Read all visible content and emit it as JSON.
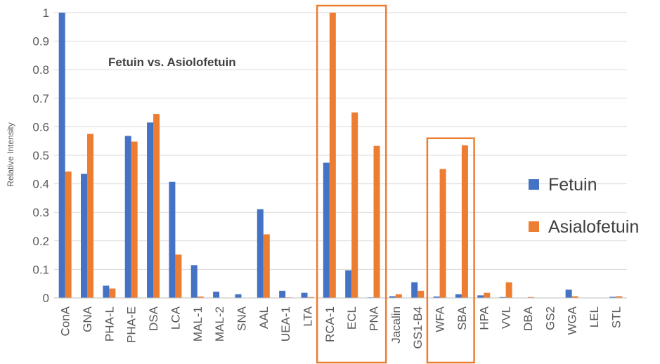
{
  "chart_data": {
    "type": "bar",
    "title": "Fetuin vs. Asiolofetuin",
    "ylabel": "Relative Intensity",
    "xlabel": "",
    "ylim": [
      0,
      1
    ],
    "yticks": [
      "0",
      "0.1",
      "0.2",
      "0.3",
      "0.4",
      "0.5",
      "0.6",
      "0.7",
      "0.8",
      "0.9",
      "1"
    ],
    "grid": true,
    "legend_position": "right",
    "categories": [
      "ConA",
      "GNA",
      "PHA-L",
      "PHA-E",
      "DSA",
      "LCA",
      "MAL-1",
      "MAL-2",
      "SNA",
      "AAL",
      "UEA-1",
      "LTA",
      "RCA-1",
      "ECL",
      "PNA",
      "Jacalin",
      "GS1-B4",
      "WFA",
      "SBA",
      "HPA",
      "VVL",
      "DBA",
      "GS2",
      "WGA",
      "LEL",
      "STL"
    ],
    "series": [
      {
        "name": "Fetuin",
        "color": "#4472C4",
        "values": [
          1.0,
          0.435,
          0.043,
          0.568,
          0.615,
          0.407,
          0.115,
          0.022,
          0.013,
          0.311,
          0.025,
          0.018,
          0.474,
          0.097,
          0.002,
          0.006,
          0.055,
          0.005,
          0.013,
          0.009,
          0.003,
          0.0,
          0.0,
          0.029,
          0.0,
          0.004
        ]
      },
      {
        "name": "Asialofetuin",
        "color": "#ED7D31",
        "values": [
          0.443,
          0.575,
          0.033,
          0.548,
          0.645,
          0.152,
          0.005,
          0.0,
          0.0,
          0.223,
          0.002,
          0.003,
          1.0,
          0.65,
          0.533,
          0.013,
          0.025,
          0.452,
          0.535,
          0.018,
          0.055,
          0.003,
          0.0,
          0.006,
          0.0,
          0.006
        ]
      }
    ],
    "highlight_groups": [
      {
        "categories": [
          "RCA-1",
          "ECL",
          "PNA"
        ],
        "color": "#ED7D31"
      },
      {
        "categories": [
          "WFA",
          "SBA"
        ],
        "color": "#ED7D31"
      }
    ]
  }
}
